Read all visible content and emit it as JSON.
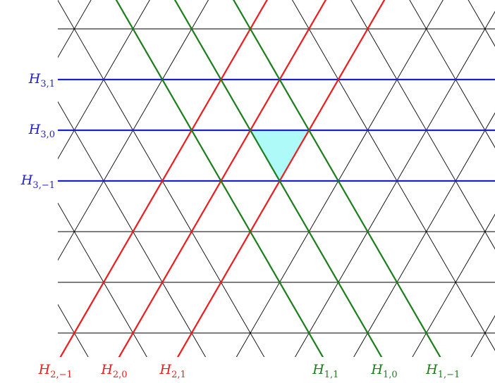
{
  "colors": {
    "grid": "#000000",
    "family_3": "#1f1fcc",
    "family_2": "#ee1c1c",
    "family_1": "#1a7f1a",
    "alcove_fill": "#aefaf8"
  },
  "hyperplanes": {
    "family_3": [
      {
        "label": "H",
        "subscript": "3,1",
        "k": 1
      },
      {
        "label": "H",
        "subscript": "3,0",
        "k": 0
      },
      {
        "label": "H",
        "subscript": "3,−1",
        "k": -1
      }
    ],
    "family_2": [
      {
        "label": "H",
        "subscript": "2,−1",
        "k": -1
      },
      {
        "label": "H",
        "subscript": "2,0",
        "k": 0
      },
      {
        "label": "H",
        "subscript": "2,1",
        "k": 1
      }
    ],
    "family_1": [
      {
        "label": "H",
        "subscript": "1,1",
        "k": 1
      },
      {
        "label": "H",
        "subscript": "1,0",
        "k": 0
      },
      {
        "label": "H",
        "subscript": "1,−1",
        "k": -1
      }
    ]
  },
  "fundamental_alcove": {
    "shaded": true
  }
}
